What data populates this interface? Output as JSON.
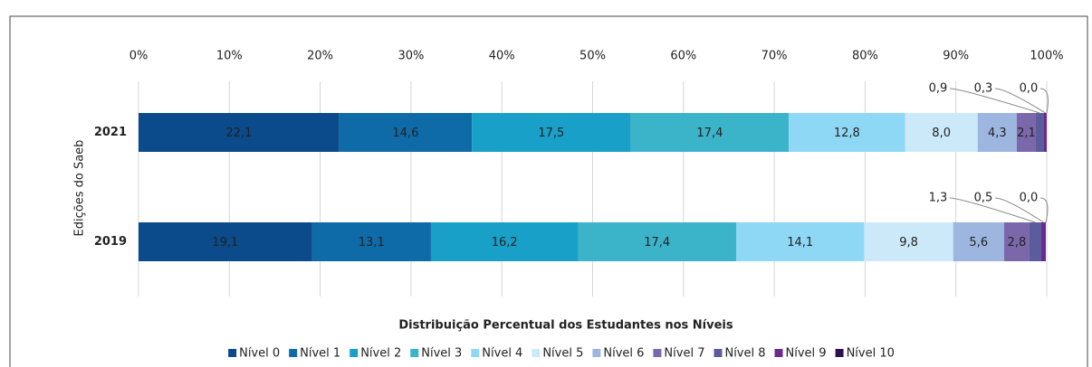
{
  "chart_data": {
    "type": "stacked-bar-horizontal",
    "categories": [
      "2021",
      "2019"
    ],
    "y_axis_label": "Edições do Saeb",
    "x_axis_label": "Distribuição Percentual dos Estudantes nos Níveis",
    "xlim": [
      0,
      100
    ],
    "xticks": [
      {
        "value": 0,
        "label": "0%"
      },
      {
        "value": 10,
        "label": "10%"
      },
      {
        "value": 20,
        "label": "20%"
      },
      {
        "value": 30,
        "label": "30%"
      },
      {
        "value": 40,
        "label": "40%"
      },
      {
        "value": 50,
        "label": "50%"
      },
      {
        "value": 60,
        "label": "60%"
      },
      {
        "value": 70,
        "label": "70%"
      },
      {
        "value": 80,
        "label": "80%"
      },
      {
        "value": 90,
        "label": "90%"
      },
      {
        "value": 100,
        "label": "100%"
      }
    ],
    "grid": true,
    "legend": "bottom",
    "series": [
      {
        "name": "Nível 0",
        "color": "#0b4a8b",
        "values": [
          22.1,
          19.1
        ],
        "value_labels": [
          "22,1",
          "19,1"
        ]
      },
      {
        "name": "Nível 1",
        "color": "#0f6ba8",
        "values": [
          14.6,
          13.1
        ],
        "value_labels": [
          "14,6",
          "13,1"
        ]
      },
      {
        "name": "Nível 2",
        "color": "#19a0c9",
        "values": [
          17.5,
          16.2
        ],
        "value_labels": [
          "17,5",
          "16,2"
        ]
      },
      {
        "name": "Nível 3",
        "color": "#3bb4c9",
        "values": [
          17.4,
          17.4
        ],
        "value_labels": [
          "17,4",
          "17,4"
        ]
      },
      {
        "name": "Nível 4",
        "color": "#8ed8f5",
        "values": [
          12.8,
          14.1
        ],
        "value_labels": [
          "12,8",
          "14,1"
        ]
      },
      {
        "name": "Nível 5",
        "color": "#cbe9f8",
        "values": [
          8.0,
          9.8
        ],
        "value_labels": [
          "8,0",
          "9,8"
        ]
      },
      {
        "name": "Nível 6",
        "color": "#9db6e0",
        "values": [
          4.3,
          5.6
        ],
        "value_labels": [
          "4,3",
          "5,6"
        ]
      },
      {
        "name": "Nível 7",
        "color": "#7b68aa",
        "values": [
          2.1,
          2.8
        ],
        "value_labels": [
          "2,1",
          "2,8"
        ]
      },
      {
        "name": "Nível 8",
        "color": "#5a5c9c",
        "values": [
          0.9,
          1.3
        ],
        "value_labels": [
          "0,9",
          "1,3"
        ]
      },
      {
        "name": "Nível 9",
        "color": "#6b2a8c",
        "values": [
          0.3,
          0.5
        ],
        "value_labels": [
          "0,3",
          "0,5"
        ]
      },
      {
        "name": "Nível 10",
        "color": "#2a1050",
        "values": [
          0.0,
          0.0
        ],
        "value_labels": [
          "0,0",
          "0,0"
        ]
      }
    ]
  }
}
